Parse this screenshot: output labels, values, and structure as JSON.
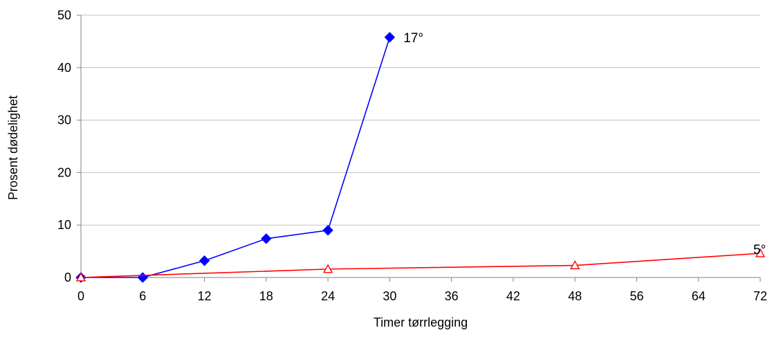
{
  "chart_data": {
    "type": "line",
    "title": "",
    "xlabel": "Timer tørrlegging",
    "ylabel": "Prosent dødelighet",
    "x_tick_labels": [
      "0",
      "6",
      "12",
      "18",
      "24",
      "30",
      "36",
      "42",
      "48",
      "56",
      "64",
      "72"
    ],
    "y_ticks": [
      0,
      10,
      20,
      30,
      40,
      50
    ],
    "ylim": [
      0,
      50
    ],
    "grid": {
      "horizontal": true,
      "vertical": false
    },
    "series": [
      {
        "name": "17°",
        "color": "#0000ff",
        "marker": "diamond-filled",
        "points": [
          {
            "x": "0",
            "y": 0
          },
          {
            "x": "6",
            "y": 0
          },
          {
            "x": "12",
            "y": 3.2
          },
          {
            "x": "18",
            "y": 7.4
          },
          {
            "x": "24",
            "y": 9.0
          },
          {
            "x": "30",
            "y": 45.8
          }
        ]
      },
      {
        "name": "5°",
        "color": "#ff0000",
        "marker": "triangle-open",
        "points": [
          {
            "x": "0",
            "y": 0
          },
          {
            "x": "24",
            "y": 1.6
          },
          {
            "x": "48",
            "y": 2.3
          },
          {
            "x": "72",
            "y": 4.6
          }
        ]
      }
    ]
  }
}
